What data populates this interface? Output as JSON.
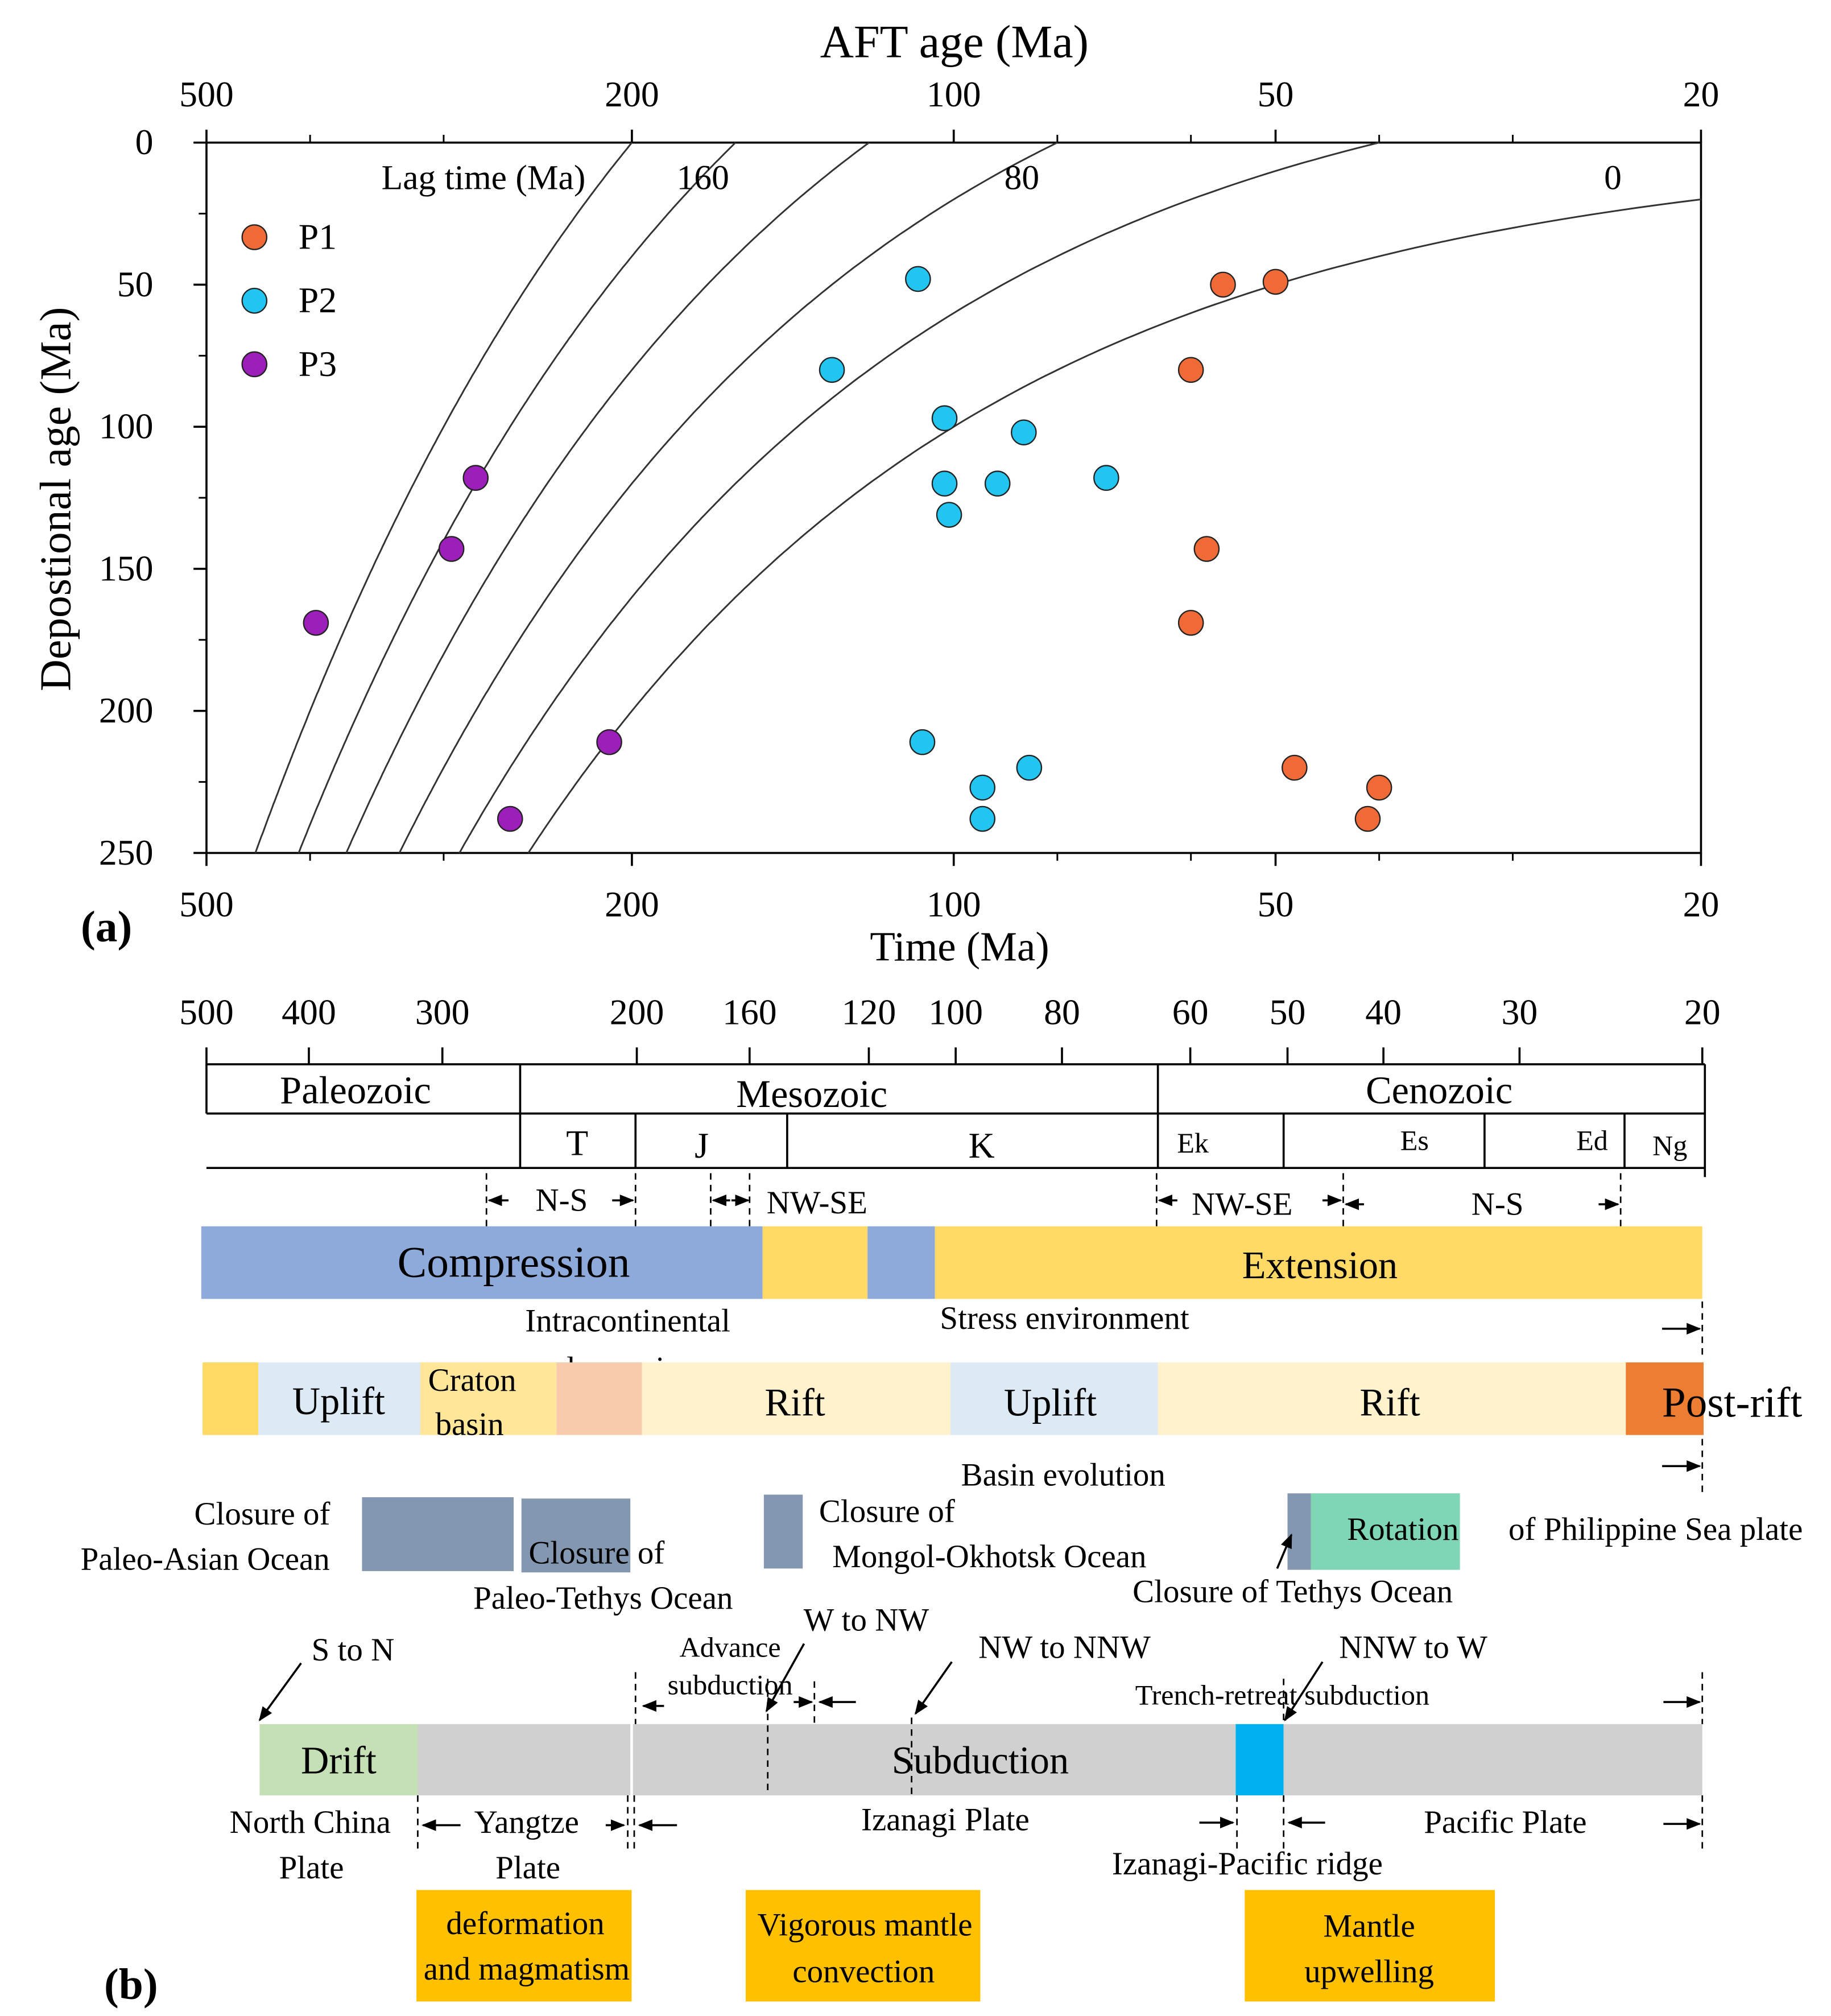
{
  "chart_data": [
    {
      "panel": "(a)",
      "type": "scatter",
      "title": "",
      "x_axis": {
        "top_label": "AFT age (Ma)",
        "bottom_label": "Time (Ma)",
        "scale": "log-reversed",
        "range": [
          500,
          20
        ],
        "ticks": [
          "500",
          "200",
          "100",
          "50",
          "20"
        ]
      },
      "y_axis": {
        "label": "Depostional age (Ma)",
        "range": [
          0,
          250
        ],
        "ticks": [
          "0",
          "50",
          "100",
          "150",
          "200",
          "250"
        ]
      },
      "lag_time_title": "Lag time (Ma)",
      "lag_curves": [
        {
          "lag": 200,
          "label": ""
        },
        {
          "lag": 160,
          "label": "160"
        },
        {
          "lag": 120,
          "label": ""
        },
        {
          "lag": 80,
          "label": "80"
        },
        {
          "lag": 40,
          "label": ""
        },
        {
          "lag": 0,
          "label": "0"
        }
      ],
      "series": [
        {
          "name": "P1",
          "color": "#f06a37",
          "points": [
            [
              56,
              50
            ],
            [
              50,
              49
            ],
            [
              60,
              80
            ],
            [
              58,
              143
            ],
            [
              60,
              169
            ],
            [
              48,
              220
            ],
            [
              40,
              227
            ],
            [
              41,
              238
            ]
          ]
        },
        {
          "name": "P2",
          "color": "#22c5f0",
          "points": [
            [
              108,
              48
            ],
            [
              130,
              80
            ],
            [
              102,
              97
            ],
            [
              86,
              102
            ],
            [
              102,
              120
            ],
            [
              91,
              120
            ],
            [
              72,
              118
            ],
            [
              101,
              131
            ],
            [
              107,
              211
            ],
            [
              94,
              227
            ],
            [
              94,
              238
            ],
            [
              85,
              220
            ]
          ]
        },
        {
          "name": "P3",
          "color": "#9b1fb8",
          "points": [
            [
              280,
              118
            ],
            [
              295,
              143
            ],
            [
              395,
              169
            ],
            [
              210,
              211
            ],
            [
              260,
              238
            ]
          ]
        }
      ]
    }
  ],
  "panel_a": {
    "letter": "(a)"
  },
  "panel_b": {
    "letter": "(b)",
    "time_ticks": [
      "500",
      "400",
      "300",
      "200",
      "160",
      "120",
      "100",
      "80",
      "60",
      "50",
      "40",
      "30",
      "20"
    ],
    "eras": [
      "Paleozoic",
      "Mesozoic",
      "Cenozoic"
    ],
    "periods": [
      "T",
      "J",
      "K",
      "Ek",
      "Es",
      "Ed",
      "Ng"
    ],
    "stress_dirs": [
      "N-S",
      "NW-SE",
      "NW-SE",
      "N-S"
    ],
    "stress_bars": [
      "Compression",
      "Extension"
    ],
    "stress_caption": "Stress environment",
    "intracontinental": [
      "Intracontinental",
      "depression"
    ],
    "basin_bars": [
      "Uplift",
      "Craton",
      "basin",
      "Rift",
      "Uplift",
      "Rift",
      "Post-rift"
    ],
    "basin_caption": "Basin evolution",
    "closures": {
      "paleo_asian": [
        "Closure of",
        "Paleo-Asian  Ocean"
      ],
      "paleo_tethys": [
        "Closure  of",
        "Paleo-Tethys  Ocean"
      ],
      "mongol": [
        "Closure  of",
        "Mongol-Okhotsk  Ocean"
      ],
      "tethys": "Closure  of Tethys Ocean",
      "rotation_a": "Rotation",
      "rotation_b": "of Philippine  Sea plate"
    },
    "subduction": {
      "s_to_n": "S to N",
      "advance": [
        "Advance",
        "subduction"
      ],
      "w_to_nw": "W to NW",
      "nw_to_nnw": "NW to NNW",
      "nnw_to_w": "NNW to W",
      "trench": "Trench-retreat subduction",
      "drift": "Drift",
      "main": "Subduction"
    },
    "plates": {
      "north_china": [
        "North China",
        "Plate"
      ],
      "yangtze": [
        "Yangtze",
        "Plate"
      ],
      "izanagi": "Izanagi  Plate",
      "pacific": "Pacific  Plate",
      "ridge": "Izanagi-Pacific  ridge"
    },
    "processes": {
      "deformation": [
        "deformation",
        "and magmatism"
      ],
      "convection": [
        "Vigorous  mantle",
        "convection"
      ],
      "upwelling": [
        "Mantle",
        "upwelling"
      ]
    },
    "colors": {
      "compression": "#8eaadb",
      "extension": "#ffd966",
      "uplift": "#dde9f5",
      "rift": "#fff2cc",
      "craton": "#ffe699",
      "depression": "#f8cbad",
      "post_rift": "#ed7d31",
      "closure": "#8497b0",
      "rotation": "#7fd6b4",
      "drift": "#c5e0b4",
      "subduction": "#d0d0d0",
      "ridge": "#00b0f0",
      "process": "#ffc000"
    }
  }
}
